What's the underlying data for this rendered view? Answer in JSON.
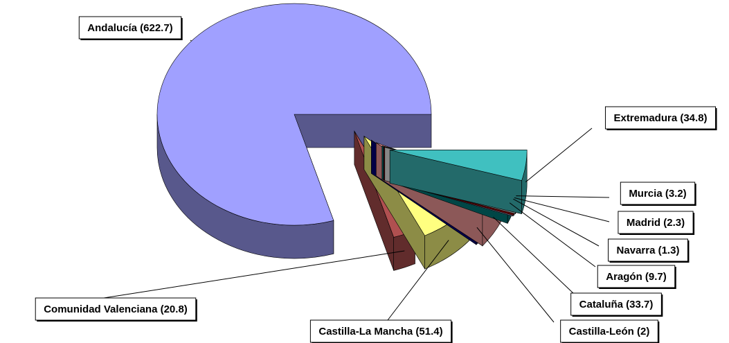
{
  "chart_data": {
    "type": "pie",
    "values": [
      34.8,
      3.2,
      2.3,
      1.3,
      9.7,
      33.7,
      2,
      51.4,
      20.8,
      622.7
    ],
    "value_labels": [
      "Extremadura (34.8)",
      "Murcia (3.2)",
      "Madrid (2.3)",
      "Navarra (1.3)",
      "Aragón (9.7)",
      "Cataluña (33.7)",
      "Castilla-León (2)",
      "Castilla-La Mancha (51.4)",
      "Comunidad Valenciana (20.8)",
      "Andalucía (622.7)"
    ],
    "colors": [
      "#40c0c0",
      "#f4f4f4",
      "#b00000",
      "#d8c0f0",
      "#008080",
      "#ffa0a0",
      "#000080",
      "#ffff80",
      "#b05050",
      "#a0a0ff"
    ]
  }
}
